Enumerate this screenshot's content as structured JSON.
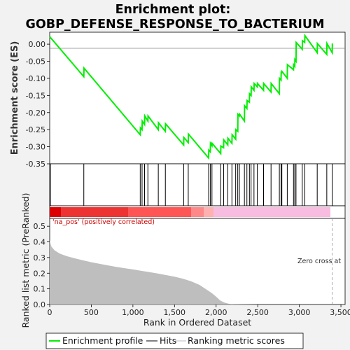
{
  "title_line1": "Enrichment plot:",
  "title_line2": "GOBP_DEFENSE_RESPONSE_TO_BACTERIUM",
  "colors": {
    "es_line": "#00ee00",
    "hit": "#000000",
    "metric_fill": "#bebebe",
    "pos_label": "#cc0000",
    "legend_line": "#bdbdbd"
  },
  "pos_label": "'na_pos' (positively correlated)",
  "zero_cross_label": "Zero cross at",
  "legend": {
    "es": "Enrichment profile",
    "hits": "Hits",
    "metric": "Ranking metric scores"
  },
  "chart_data": [
    {
      "type": "line",
      "ylabel": "Enrichment score (ES)",
      "xlim": [
        0,
        3550
      ],
      "ylim": [
        -0.35,
        0.035
      ],
      "yticks": [
        "0.00",
        "-0.05",
        "-0.10",
        "-0.15",
        "-0.20",
        "-0.25",
        "-0.30",
        "-0.35"
      ],
      "grid": false,
      "series": [
        {
          "x": [
            0,
            410,
            412,
            1088,
            1090,
            1110,
            1112,
            1140,
            1142,
            1180,
            1182,
            1305,
            1307,
            1390,
            1392,
            1610,
            1612,
            1665,
            1667,
            1910,
            1912,
            1930,
            1932,
            1950,
            1952,
            2055,
            2057,
            2090,
            2092,
            2140,
            2142,
            2190,
            2192,
            2235,
            2237,
            2260,
            2262,
            2280,
            2282,
            2340,
            2342,
            2370,
            2372,
            2400,
            2402,
            2420,
            2422,
            2455,
            2457,
            2495,
            2497,
            2570,
            2572,
            2660,
            2662,
            2760,
            2762,
            2780,
            2782,
            2790,
            2792,
            2855,
            2857,
            2930,
            2932,
            2945,
            2947,
            2960,
            2962,
            3035,
            3037,
            3065,
            3067,
            3215,
            3217,
            3330,
            3332,
            3395,
            3397
          ],
          "y": [
            0.022,
            -0.095,
            -0.07,
            -0.265,
            -0.245,
            -0.25,
            -0.225,
            -0.235,
            -0.21,
            -0.225,
            -0.21,
            -0.25,
            -0.23,
            -0.255,
            -0.233,
            -0.295,
            -0.273,
            -0.288,
            -0.263,
            -0.333,
            -0.31,
            -0.315,
            -0.29,
            -0.297,
            -0.29,
            -0.32,
            -0.298,
            -0.303,
            -0.28,
            -0.295,
            -0.275,
            -0.29,
            -0.265,
            -0.278,
            -0.25,
            -0.255,
            -0.205,
            -0.21,
            -0.205,
            -0.225,
            -0.18,
            -0.188,
            -0.165,
            -0.17,
            -0.145,
            -0.15,
            -0.125,
            -0.135,
            -0.115,
            -0.125,
            -0.115,
            -0.135,
            -0.115,
            -0.14,
            -0.115,
            -0.145,
            -0.1,
            -0.105,
            -0.08,
            -0.085,
            -0.08,
            -0.1,
            -0.06,
            -0.075,
            -0.06,
            -0.065,
            -0.045,
            -0.05,
            0.005,
            -0.015,
            0.01,
            0.005,
            0.025,
            -0.025,
            0.002,
            -0.03,
            0.002,
            -0.025,
            0.002
          ]
        }
      ]
    },
    {
      "type": "scatter",
      "name": "Hits",
      "hits": [
        8,
        410,
        1088,
        1110,
        1140,
        1180,
        1305,
        1390,
        1610,
        1665,
        1910,
        1930,
        1950,
        2055,
        2090,
        2140,
        2190,
        2235,
        2260,
        2280,
        2340,
        2370,
        2400,
        2420,
        2455,
        2495,
        2570,
        2660,
        2760,
        2780,
        2790,
        2855,
        2930,
        2945,
        2960,
        3035,
        3065,
        3215,
        3330,
        3395
      ]
    },
    {
      "type": "area",
      "xlabel": "Rank in Ordered Dataset",
      "ylabel": "Ranked list metric (PreRanked)",
      "xlim": [
        0,
        3550
      ],
      "ylim": [
        0,
        0.55
      ],
      "xticks": [
        "0",
        "500",
        "1,000",
        "1,500",
        "2,000",
        "2,500",
        "3,000",
        "3,500"
      ],
      "yticks": [
        "0.0",
        "0.1",
        "0.2",
        "0.3",
        "0.4",
        "0.5"
      ],
      "zero_cross": 3395,
      "series": [
        {
          "x": [
            0,
            20,
            60,
            120,
            200,
            300,
            400,
            500,
            600,
            700,
            800,
            900,
            1000,
            1100,
            1200,
            1300,
            1400,
            1500,
            1600,
            1700,
            1800,
            1900,
            1950,
            2000,
            2050,
            2100,
            2150,
            2200,
            2300,
            2500,
            3000,
            3400
          ],
          "y": [
            0.41,
            0.37,
            0.345,
            0.325,
            0.31,
            0.295,
            0.282,
            0.27,
            0.26,
            0.25,
            0.24,
            0.232,
            0.224,
            0.215,
            0.207,
            0.198,
            0.188,
            0.178,
            0.165,
            0.148,
            0.125,
            0.09,
            0.072,
            0.05,
            0.025,
            0.012,
            0.005,
            0.002,
            0.001,
            0.0,
            0.0,
            0.0
          ]
        }
      ]
    }
  ]
}
